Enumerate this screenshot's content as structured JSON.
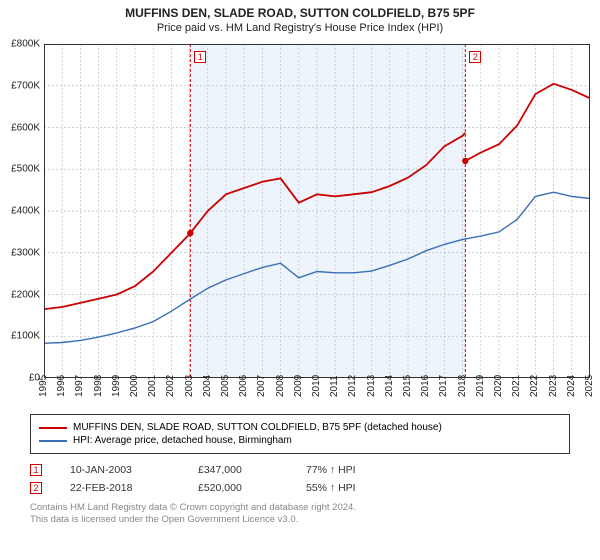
{
  "header": {
    "title": "MUFFINS DEN, SLADE ROAD, SUTTON COLDFIELD, B75 5PF",
    "subtitle": "Price paid vs. HM Land Registry's House Price Index (HPI)"
  },
  "chart": {
    "type": "line",
    "background_color": "#ffffff",
    "grid_color": "#bfbfbf",
    "grid_dash": "2 2",
    "axis_color": "#333333",
    "x_years": [
      1995,
      1996,
      1997,
      1998,
      1999,
      2000,
      2001,
      2002,
      2003,
      2004,
      2005,
      2006,
      2007,
      2008,
      2009,
      2010,
      2011,
      2012,
      2013,
      2014,
      2015,
      2016,
      2017,
      2018,
      2019,
      2020,
      2021,
      2022,
      2023,
      2024,
      2025
    ],
    "y_ticks": [
      0,
      100,
      200,
      300,
      400,
      500,
      600,
      700,
      800
    ],
    "y_tick_prefix": "£",
    "y_tick_suffix": "K",
    "ylim": [
      0,
      800
    ],
    "xlim": [
      1995,
      2025
    ],
    "label_fontsize": 10,
    "shaded_ranges": [
      {
        "x0": 2003.04,
        "x1": 2018.15,
        "color": "#eef4fb"
      }
    ],
    "vlines": [
      {
        "x": 2003.04,
        "color": "#cc0000",
        "dash": "3 2",
        "marker_num": "1",
        "marker_y": 0.98
      },
      {
        "x": 2018.15,
        "color": "#cc0000",
        "dash": "3 2",
        "marker_num": "2",
        "marker_y": 0.98
      }
    ],
    "series": [
      {
        "name": "price_paid",
        "label": "MUFFINS DEN, SLADE ROAD, SUTTON COLDFIELD, B75 5PF (detached house)",
        "color": "#cc0000",
        "width": 1.8,
        "segments": [
          {
            "x": [
              1995,
              1996,
              1997,
              1998,
              1999,
              2000,
              2001,
              2002,
              2003,
              2003.04
            ],
            "y": [
              165,
              170,
              180,
              190,
              200,
              220,
              255,
              300,
              345,
              347
            ]
          },
          {
            "x": [
              2003.04,
              2004,
              2005,
              2006,
              2007,
              2008,
              2009,
              2010,
              2011,
              2012,
              2013,
              2014,
              2015,
              2016,
              2017,
              2018,
              2018.15
            ],
            "y": [
              347,
              400,
              440,
              455,
              470,
              478,
              420,
              440,
              435,
              440,
              445,
              460,
              480,
              510,
              555,
              580,
              587
            ]
          },
          {
            "x": [
              2018.15,
              2019,
              2020,
              2021,
              2022,
              2023,
              2024,
              2025
            ],
            "y": [
              520,
              540,
              560,
              605,
              680,
              705,
              690,
              670
            ]
          }
        ],
        "dots": [
          {
            "x": 2003.04,
            "y": 347
          },
          {
            "x": 2018.15,
            "y": 520
          }
        ]
      },
      {
        "name": "hpi",
        "label": "HPI: Average price, detached house, Birmingham",
        "color": "#3a6fb7",
        "width": 1.4,
        "segments": [
          {
            "x": [
              1995,
              1996,
              1997,
              1998,
              1999,
              2000,
              2001,
              2002,
              2003,
              2004,
              2005,
              2006,
              2007,
              2008,
              2009,
              2010,
              2011,
              2012,
              2013,
              2014,
              2015,
              2016,
              2017,
              2018,
              2019,
              2020,
              2021,
              2022,
              2023,
              2024,
              2025
            ],
            "y": [
              83,
              85,
              90,
              98,
              108,
              120,
              135,
              160,
              188,
              215,
              235,
              250,
              265,
              275,
              240,
              255,
              252,
              252,
              256,
              270,
              285,
              305,
              320,
              332,
              340,
              350,
              380,
              435,
              445,
              435,
              430
            ]
          }
        ],
        "dots": []
      }
    ]
  },
  "legend": {
    "items": [
      {
        "color": "#cc0000",
        "label": "MUFFINS DEN, SLADE ROAD, SUTTON COLDFIELD, B75 5PF (detached house)"
      },
      {
        "color": "#3a6fb7",
        "label": "HPI: Average price, detached house, Birmingham"
      }
    ]
  },
  "transactions": [
    {
      "num": "1",
      "date": "10-JAN-2003",
      "price": "£347,000",
      "hpi": "77% ↑ HPI"
    },
    {
      "num": "2",
      "date": "22-FEB-2018",
      "price": "£520,000",
      "hpi": "55% ↑ HPI"
    }
  ],
  "footer": {
    "line1": "Contains HM Land Registry data © Crown copyright and database right 2024.",
    "line2": "This data is licensed under the Open Government Licence v3.0."
  }
}
